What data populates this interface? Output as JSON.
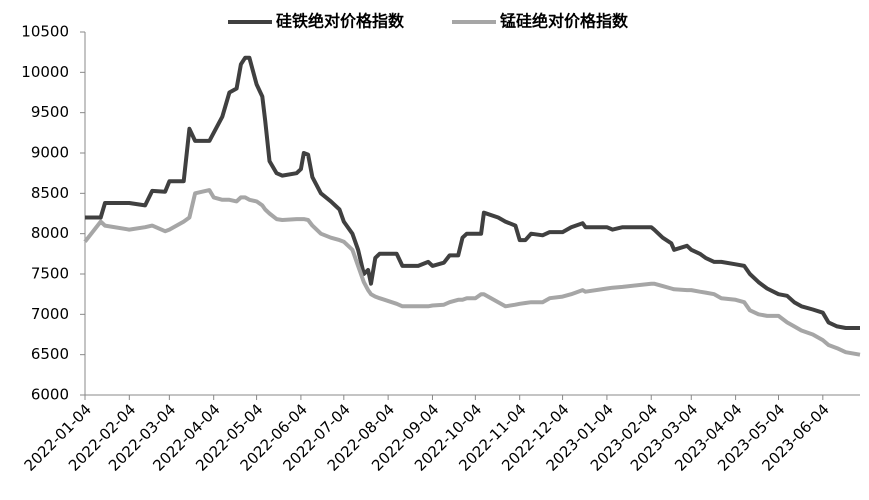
{
  "chart_data": {
    "type": "line",
    "x": [
      "2022-01-04",
      "2022-01-15",
      "2022-01-18",
      "2022-02-04",
      "2022-02-15",
      "2022-02-20",
      "2022-03-01",
      "2022-03-04",
      "2022-03-14",
      "2022-03-18",
      "2022-03-22",
      "2022-04-01",
      "2022-04-04",
      "2022-04-10",
      "2022-04-15",
      "2022-04-20",
      "2022-04-23",
      "2022-04-26",
      "2022-04-29",
      "2022-05-04",
      "2022-05-08",
      "2022-05-10",
      "2022-05-13",
      "2022-05-18",
      "2022-05-22",
      "2022-06-01",
      "2022-06-04",
      "2022-06-06",
      "2022-06-09",
      "2022-06-12",
      "2022-06-18",
      "2022-06-25",
      "2022-07-01",
      "2022-07-04",
      "2022-07-10",
      "2022-07-14",
      "2022-07-18",
      "2022-07-21",
      "2022-07-23",
      "2022-07-26",
      "2022-07-29",
      "2022-08-10",
      "2022-08-14",
      "2022-08-25",
      "2022-09-01",
      "2022-09-04",
      "2022-09-12",
      "2022-09-16",
      "2022-09-22",
      "2022-09-25",
      "2022-09-28",
      "2022-10-04",
      "2022-10-08",
      "2022-10-10",
      "2022-10-20",
      "2022-10-25",
      "2022-11-01",
      "2022-11-04",
      "2022-11-08",
      "2022-11-12",
      "2022-11-20",
      "2022-11-25",
      "2022-12-04",
      "2022-12-10",
      "2022-12-18",
      "2022-12-20",
      "2023-01-04",
      "2023-01-08",
      "2023-01-15",
      "2023-02-04",
      "2023-02-06",
      "2023-02-12",
      "2023-02-18",
      "2023-02-20",
      "2023-03-01",
      "2023-03-04",
      "2023-03-10",
      "2023-03-14",
      "2023-03-20",
      "2023-03-25",
      "2023-04-04",
      "2023-04-10",
      "2023-04-14",
      "2023-04-20",
      "2023-04-26",
      "2023-05-04",
      "2023-05-10",
      "2023-05-15",
      "2023-05-20",
      "2023-05-28",
      "2023-06-04",
      "2023-06-08",
      "2023-06-14",
      "2023-06-20",
      "2023-06-30"
    ],
    "series": [
      {
        "name": "硅铁绝对价格指数",
        "color": "#404040",
        "values": [
          8200,
          8200,
          8380,
          8380,
          8350,
          8530,
          8520,
          8650,
          8650,
          9300,
          9150,
          9150,
          9250,
          9450,
          9750,
          9800,
          10100,
          10180,
          10180,
          9850,
          9700,
          9400,
          8900,
          8750,
          8720,
          8750,
          8800,
          9000,
          8980,
          8700,
          8500,
          8400,
          8300,
          8150,
          8000,
          7800,
          7500,
          7550,
          7380,
          7700,
          7750,
          7750,
          7600,
          7600,
          7650,
          7600,
          7640,
          7730,
          7730,
          7950,
          8000,
          8000,
          8000,
          8260,
          8200,
          8150,
          8100,
          7920,
          7920,
          8000,
          7980,
          8020,
          8020,
          8080,
          8130,
          8080,
          8080,
          8050,
          8080,
          8080,
          8050,
          7950,
          7880,
          7800,
          7850,
          7800,
          7750,
          7700,
          7650,
          7650,
          7620,
          7600,
          7500,
          7400,
          7320,
          7250,
          7230,
          7150,
          7100,
          7060,
          7020,
          6900,
          6850,
          6830,
          6830
        ]
      },
      {
        "name": "锰硅绝对价格指数",
        "color": "#a6a6a6",
        "values": [
          7900,
          8150,
          8100,
          8050,
          8080,
          8100,
          8030,
          8050,
          8150,
          8200,
          8500,
          8540,
          8450,
          8420,
          8420,
          8400,
          8450,
          8450,
          8420,
          8400,
          8350,
          8300,
          8250,
          8180,
          8170,
          8180,
          8180,
          8180,
          8170,
          8100,
          8000,
          7950,
          7920,
          7900,
          7800,
          7600,
          7400,
          7300,
          7250,
          7220,
          7200,
          7130,
          7100,
          7100,
          7100,
          7110,
          7120,
          7150,
          7180,
          7180,
          7200,
          7200,
          7250,
          7250,
          7150,
          7100,
          7120,
          7130,
          7140,
          7150,
          7150,
          7200,
          7220,
          7250,
          7300,
          7280,
          7320,
          7330,
          7340,
          7380,
          7380,
          7350,
          7320,
          7310,
          7300,
          7300,
          7280,
          7270,
          7250,
          7200,
          7180,
          7150,
          7050,
          7000,
          6980,
          6980,
          6900,
          6850,
          6800,
          6750,
          6680,
          6620,
          6580,
          6530,
          6500
        ]
      }
    ],
    "xlim": [
      "2022-01-04",
      "2023-06-30"
    ],
    "xticks": [
      "2022-01-04",
      "2022-02-04",
      "2022-03-04",
      "2022-04-04",
      "2022-05-04",
      "2022-06-04",
      "2022-07-04",
      "2022-08-04",
      "2022-09-04",
      "2022-10-04",
      "2022-11-04",
      "2022-12-04",
      "2023-01-04",
      "2023-02-04",
      "2023-03-04",
      "2023-04-04",
      "2023-05-04",
      "2023-06-04"
    ],
    "ylim": [
      6000,
      10500
    ],
    "yticks": [
      6000,
      6500,
      7000,
      7500,
      8000,
      8500,
      9000,
      9500,
      10000,
      10500
    ],
    "legend": "top",
    "grid": false
  }
}
